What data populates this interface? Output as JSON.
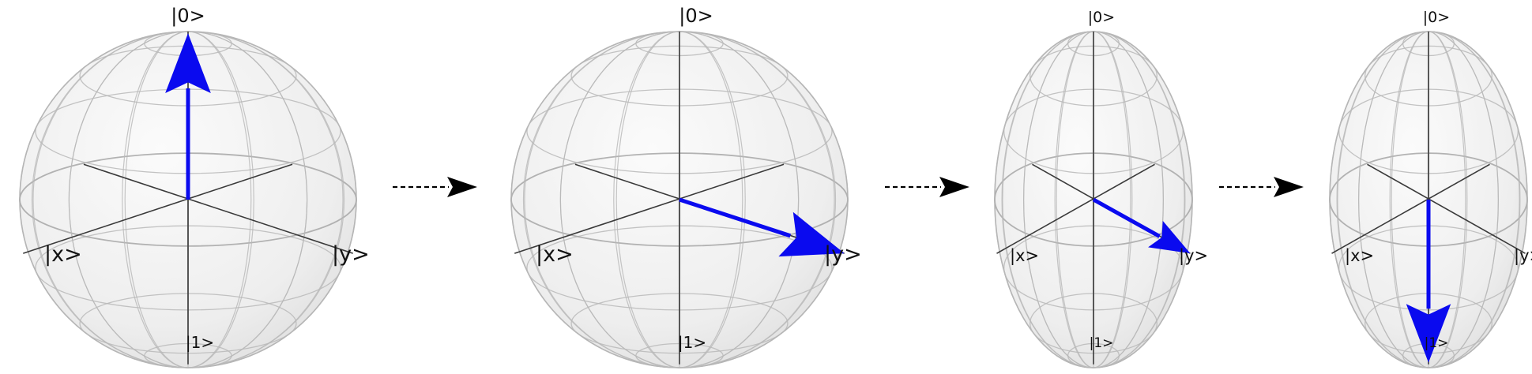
{
  "spheres": [
    {
      "labels": {
        "zero": "|0>",
        "one": "|1>",
        "x": "|x>",
        "y": "|y>"
      },
      "state_vector": "|0>"
    },
    {
      "labels": {
        "zero": "|0>",
        "one": "|1>",
        "x": "|x>",
        "y": "|y>"
      },
      "state_vector": "|y>"
    },
    {
      "labels": {
        "zero": "|0>",
        "one": "|1>",
        "x": "|x>",
        "y": "|y>"
      },
      "state_vector": "|y>"
    },
    {
      "labels": {
        "zero": "|0>",
        "one": "|1>",
        "x": "|x>",
        "y": "|y>"
      },
      "state_vector": "|1>"
    }
  ],
  "colors": {
    "vector": "#0a0aef",
    "axis": "#3a3a3a",
    "grid": "#b8b8b8",
    "sphere_fill": "#f1f1f1",
    "sphere_edge": "#b0b0b0",
    "arrow": "#000000"
  }
}
